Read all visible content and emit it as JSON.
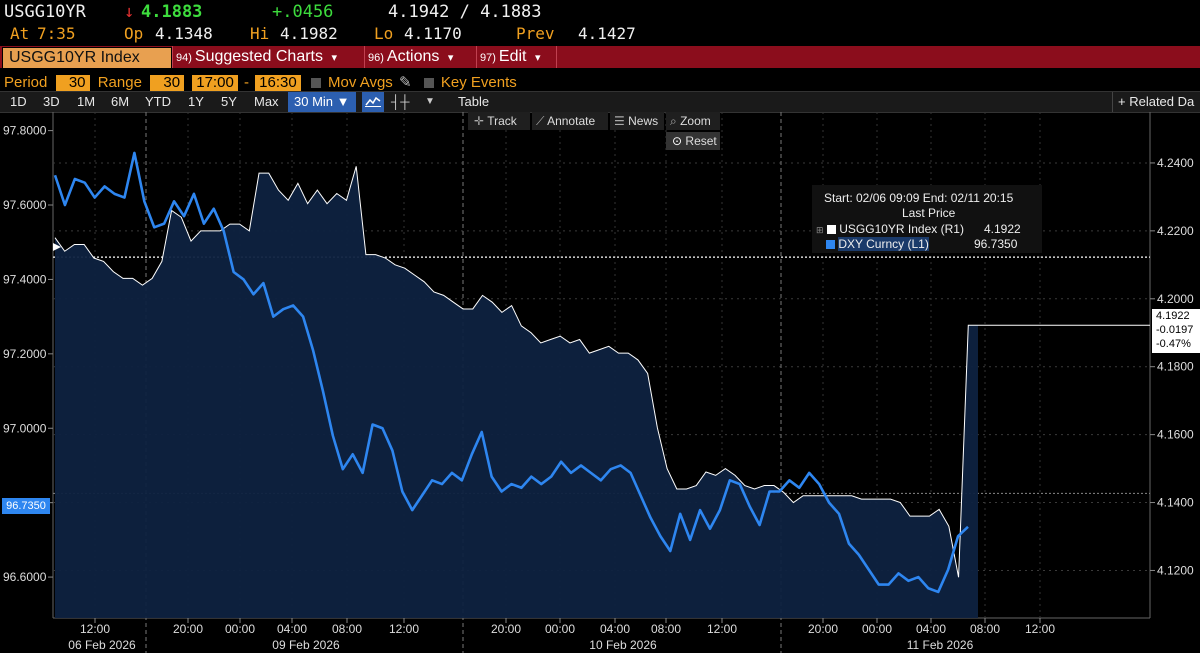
{
  "header": {
    "ticker": "USGG10YR",
    "arrow": "↓",
    "last": "4.1883",
    "change": "+.0456",
    "bid_ask": "4.1942 / 4.1883",
    "at_label": "At",
    "at_time": "7:35",
    "op_label": "Op",
    "op": "4.1348",
    "hi_label": "Hi",
    "hi": "4.1982",
    "lo_label": "Lo",
    "lo": "4.1170",
    "prev_label": "Prev",
    "prev": "4.1427"
  },
  "menubar": {
    "security": "USGG10YR Index",
    "items": [
      {
        "num": "94)",
        "label": "Suggested Charts"
      },
      {
        "num": "96)",
        "label": "Actions"
      },
      {
        "num": "97)",
        "label": "Edit"
      }
    ],
    "caret": "▾"
  },
  "period_row": {
    "period_label": "Period",
    "period": "30",
    "range_label": "Range",
    "range": "30",
    "start_time": "17:00",
    "dash": "-",
    "end_time": "16:30",
    "mov_avgs": "Mov Avgs",
    "key_events": "Key Events"
  },
  "toolbar": {
    "ranges": [
      "1D",
      "3D",
      "1M",
      "6M",
      "YTD",
      "1Y",
      "5Y",
      "Max"
    ],
    "interval": "30 Min ▼",
    "table": "Table",
    "related": "+ Related Da"
  },
  "chart_tools": {
    "track": "Track",
    "annotate": "Annotate",
    "news": "News",
    "zoom": "Zoom",
    "reset": "Reset"
  },
  "legend": {
    "range_text": "Start: 02/06 09:09  End: 02/11 20:15",
    "title": "Last Price",
    "rows": [
      {
        "name": "USGG10YR Index  (R1)",
        "value": "4.1922",
        "color": "#ffffff"
      },
      {
        "name": "DXY Curncy  (L1)",
        "value": "96.7350",
        "color": "#2e86f0"
      }
    ]
  },
  "chart_data": {
    "type": "line",
    "left_axis": {
      "ticks": [
        "97.8000",
        "97.6000",
        "97.4000",
        "97.2000",
        "97.0000",
        "96.8000",
        "96.6000"
      ],
      "range": [
        96.49,
        97.85
      ],
      "current": "96.7350"
    },
    "right_axis": {
      "ticks": [
        "4.2400",
        "4.2200",
        "4.2000",
        "4.1800",
        "4.1600",
        "4.1400",
        "4.1200"
      ],
      "range": [
        4.106,
        4.255
      ],
      "current_lines": [
        "4.1922",
        "-0.0197",
        "-0.47%"
      ]
    },
    "x_ticks": [
      "12:00",
      "20:00",
      "00:00",
      "04:00",
      "08:00",
      "12:00",
      "20:00",
      "00:00",
      "04:00",
      "08:00",
      "12:00",
      "20:00",
      "00:00",
      "04:00",
      "08:00",
      "12:00"
    ],
    "date_labels": [
      "06 Feb 2026",
      "09 Feb 2026",
      "10 Feb 2026",
      "11 Feb 2026"
    ],
    "series": [
      {
        "name": "USGG10YR Index (R1)",
        "color": "#ffffff",
        "fill": "#0e2240",
        "x": [
          0,
          1,
          2,
          3,
          4,
          5,
          6,
          7,
          8,
          9,
          10,
          11,
          12,
          13,
          14,
          15,
          16,
          17,
          18,
          19,
          20,
          21,
          22,
          23,
          24,
          25,
          26,
          27,
          28,
          29,
          30,
          31,
          32,
          33,
          34,
          35,
          36,
          37,
          38,
          39,
          40,
          41,
          42,
          43,
          44,
          45,
          46,
          47,
          48,
          49,
          50,
          51,
          52,
          53,
          54,
          55,
          56,
          57,
          58,
          59,
          60,
          61,
          62,
          63,
          64,
          65,
          66,
          67,
          68,
          69,
          70,
          71,
          72,
          73,
          74,
          75,
          76,
          77,
          78,
          79,
          80,
          81,
          82,
          83,
          84,
          85,
          86,
          87,
          88,
          89,
          90,
          91,
          92,
          93,
          94,
          95
        ],
        "y": [
          4.218,
          4.214,
          4.216,
          4.216,
          4.212,
          4.211,
          4.208,
          4.206,
          4.206,
          4.204,
          4.206,
          4.211,
          4.226,
          4.224,
          4.217,
          4.22,
          4.22,
          4.22,
          4.222,
          4.222,
          4.22,
          4.237,
          4.237,
          4.232,
          4.229,
          4.234,
          4.228,
          4.232,
          4.228,
          4.231,
          4.229,
          4.239,
          4.213,
          4.213,
          4.212,
          4.21,
          4.209,
          4.207,
          4.205,
          4.202,
          4.201,
          4.199,
          4.197,
          4.197,
          4.201,
          4.199,
          4.196,
          4.198,
          4.192,
          4.19,
          4.187,
          4.188,
          4.189,
          4.187,
          4.188,
          4.184,
          4.185,
          4.186,
          4.184,
          4.184,
          4.182,
          4.178,
          4.162,
          4.15,
          4.144,
          4.144,
          4.145,
          4.149,
          4.148,
          4.15,
          4.148,
          4.145,
          4.144,
          4.145,
          4.145,
          4.143,
          4.14,
          4.142,
          4.142,
          4.142,
          4.142,
          4.142,
          4.142,
          4.141,
          4.141,
          4.141,
          4.141,
          4.14,
          4.136,
          4.136,
          4.136,
          4.138,
          4.133,
          4.118,
          4.1922,
          4.1922
        ]
      },
      {
        "name": "DXY Curncy (L1)",
        "color": "#2e86f0",
        "x": [
          0,
          1,
          2,
          3,
          4,
          5,
          6,
          7,
          8,
          9,
          10,
          11,
          12,
          13,
          14,
          15,
          16,
          17,
          18,
          19,
          20,
          21,
          22,
          23,
          24,
          25,
          26,
          27,
          28,
          29,
          30,
          31,
          32,
          33,
          34,
          35,
          36,
          37,
          38,
          39,
          40,
          41,
          42,
          43,
          44,
          45,
          46,
          47,
          48,
          49,
          50,
          51,
          52,
          53,
          54,
          55,
          56,
          57,
          58,
          59,
          60,
          61,
          62,
          63,
          64,
          65,
          66,
          67,
          68,
          69,
          70,
          71,
          72,
          73,
          74,
          75,
          76,
          77,
          78,
          79,
          80,
          81,
          82,
          83,
          84,
          85,
          86,
          87,
          88,
          89,
          90,
          91,
          92
        ],
        "y": [
          97.68,
          97.6,
          97.67,
          97.66,
          97.62,
          97.65,
          97.63,
          97.62,
          97.74,
          97.61,
          97.54,
          97.55,
          97.61,
          97.57,
          97.63,
          97.55,
          97.59,
          97.53,
          97.42,
          97.4,
          97.36,
          97.39,
          97.3,
          97.32,
          97.33,
          97.3,
          97.21,
          97.1,
          96.98,
          96.89,
          96.93,
          96.88,
          97.01,
          97.0,
          96.94,
          96.83,
          96.78,
          96.82,
          96.86,
          96.85,
          96.88,
          96.86,
          96.93,
          96.99,
          96.87,
          96.83,
          96.85,
          96.84,
          96.87,
          96.85,
          96.87,
          96.91,
          96.88,
          96.9,
          96.88,
          96.86,
          96.89,
          96.9,
          96.88,
          96.82,
          96.76,
          96.71,
          96.67,
          96.77,
          96.7,
          96.78,
          96.73,
          96.78,
          96.86,
          96.85,
          96.79,
          96.74,
          96.83,
          96.83,
          96.86,
          96.84,
          96.88,
          96.85,
          96.8,
          96.77,
          96.69,
          96.66,
          96.62,
          96.58,
          96.58,
          96.61,
          96.59,
          96.6,
          96.57,
          96.56,
          96.62,
          96.71,
          96.735
        ]
      }
    ]
  }
}
